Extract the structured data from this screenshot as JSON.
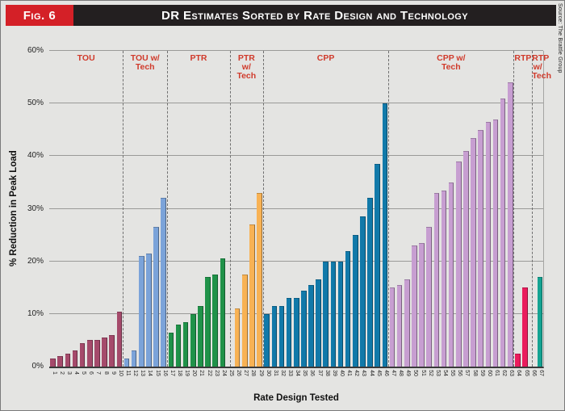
{
  "figure": {
    "fig_label": "Fig. 6",
    "title": "DR Estimates Sorted by Rate Design and Technology",
    "source_note": "Source: The Brattle Group"
  },
  "chart_data": {
    "type": "bar",
    "title": "DR Estimates Sorted by Rate Design and Technology",
    "xlabel": "Rate Design Tested",
    "ylabel": "% Reduction in Peak Load",
    "ylim": [
      0,
      60
    ],
    "yticks": [
      0,
      10,
      20,
      30,
      40,
      50,
      60
    ],
    "ytick_suffix": "%",
    "grid": true,
    "x": [
      1,
      2,
      3,
      4,
      5,
      6,
      7,
      8,
      9,
      10,
      11,
      12,
      13,
      14,
      15,
      16,
      17,
      18,
      19,
      20,
      21,
      22,
      23,
      24,
      25,
      26,
      27,
      28,
      29,
      30,
      31,
      32,
      33,
      34,
      35,
      36,
      37,
      38,
      39,
      40,
      41,
      42,
      43,
      44,
      45,
      46,
      47,
      48,
      49,
      50,
      51,
      52,
      53,
      54,
      55,
      56,
      57,
      58,
      59,
      60,
      61,
      62,
      63,
      64,
      65,
      66,
      67
    ],
    "values": [
      1.5,
      2,
      2.5,
      3,
      4.5,
      5,
      5,
      5.5,
      6,
      10.5,
      1.5,
      3,
      21,
      21.5,
      26.5,
      32,
      6.5,
      8,
      8.5,
      10,
      11.5,
      17,
      17.5,
      20.5,
      null,
      11,
      17.5,
      27,
      33,
      10,
      11.5,
      11.5,
      13,
      13,
      14.5,
      15.5,
      16.5,
      20,
      20,
      20,
      22,
      25,
      28.5,
      32,
      38.5,
      50,
      15,
      15.5,
      16.5,
      23,
      23.5,
      26.5,
      33,
      33.5,
      35,
      39,
      41,
      43.5,
      45,
      46.5,
      47,
      51,
      54,
      2.5,
      15,
      null,
      17
    ],
    "sections": [
      {
        "name": "TOU",
        "label": "TOU",
        "from": 1,
        "to": 10,
        "start": 0,
        "end": 10,
        "color": "#a54a6b"
      },
      {
        "name": "TOU-w-Tech",
        "label": "TOU w/\nTech",
        "from": 11,
        "to": 16,
        "start": 10,
        "end": 16,
        "color": "#7ba3d9"
      },
      {
        "name": "PTR",
        "label": "PTR",
        "from": 17,
        "to": 24,
        "start": 16,
        "end": 24.5,
        "color": "#209249"
      },
      {
        "name": "PTR-w-Tech",
        "label": "PTR\nw/\nTech",
        "from": 25,
        "to": 29,
        "start": 24.5,
        "end": 29,
        "color": "#f8b254"
      },
      {
        "name": "CPP",
        "label": "CPP",
        "from": 30,
        "to": 46,
        "start": 29,
        "end": 46,
        "color": "#1179a9"
      },
      {
        "name": "CPP-w-Tech",
        "label": "CPP w/\nTech",
        "from": 47,
        "to": 63,
        "start": 46,
        "end": 63,
        "color": "#c79ed1"
      },
      {
        "name": "RTP",
        "label": "RTP",
        "from": 64,
        "to": 65,
        "start": 63,
        "end": 65.5,
        "color": "#ea1c5d"
      },
      {
        "name": "RTP-w-Tech",
        "label": "RTP\nw/\nTech",
        "from": 66,
        "to": 67,
        "start": 65.5,
        "end": 67,
        "color": "#14a392"
      }
    ],
    "legend": null,
    "colors": {
      "header_bg": "#231f20",
      "fig_badge_bg": "#d42027",
      "section_label_text": "#d03a2b",
      "plot_bg": "#e4e4e2",
      "gridline": "#9a9a98"
    }
  }
}
